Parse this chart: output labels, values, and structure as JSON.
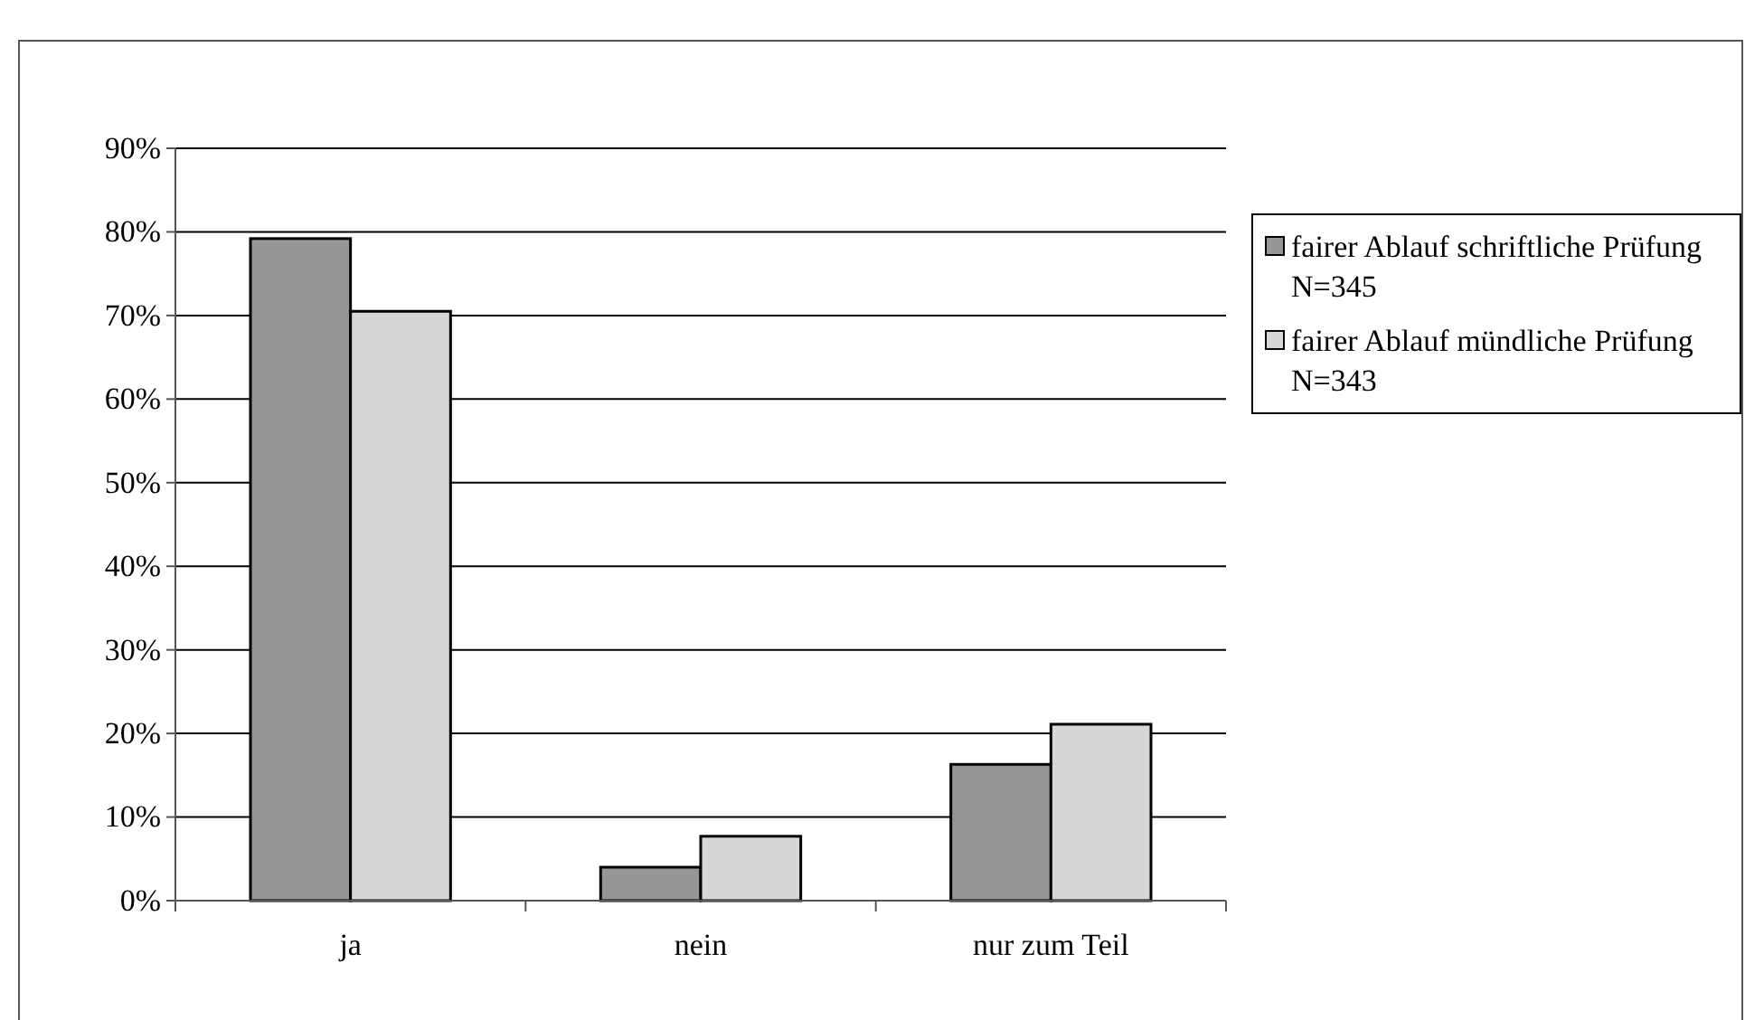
{
  "chart_data": {
    "type": "bar",
    "categories": [
      "ja",
      "nein",
      "nur zum Teil"
    ],
    "series": [
      {
        "name": "fairer Ablauf schriftliche Prüfung   N=345",
        "color": "#969696",
        "values": [
          79.2,
          4.0,
          16.3
        ]
      },
      {
        "name": "fairer Ablauf mündliche Prüfung   N=343",
        "color": "#d6d6d6",
        "values": [
          70.5,
          7.7,
          21.1
        ]
      }
    ],
    "ylim": [
      0,
      90
    ],
    "yticks": [
      {
        "value": 0,
        "label": "0%"
      },
      {
        "value": 10,
        "label": "10%"
      },
      {
        "value": 20,
        "label": "20%"
      },
      {
        "value": 30,
        "label": "30%"
      },
      {
        "value": 40,
        "label": "40%"
      },
      {
        "value": 50,
        "label": "50%"
      },
      {
        "value": 60,
        "label": "60%"
      },
      {
        "value": 70,
        "label": "70%"
      },
      {
        "value": 80,
        "label": "80%"
      },
      {
        "value": 90,
        "label": "90%"
      }
    ],
    "grid": "y",
    "legend": "right"
  }
}
